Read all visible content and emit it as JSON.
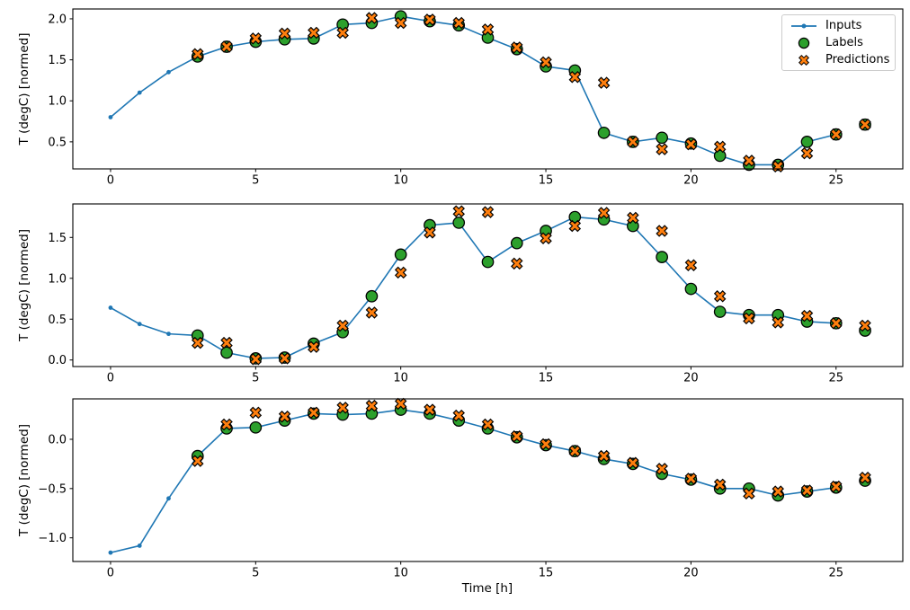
{
  "figure": {
    "background": "#ffffff"
  },
  "colors": {
    "inputs": "#1f77b4",
    "labels": "#2ca02c",
    "predictions": "#ff7f0e",
    "marker_edge": "#000000",
    "axis": "#000000",
    "text": "#000000",
    "legend_border": "#cccccc"
  },
  "chart_data": [
    {
      "type": "line+scatter",
      "ylabel": "T (degC) [normed]",
      "xlim": [
        -1.3,
        27.3
      ],
      "ylim": [
        0.17,
        2.12
      ],
      "xticks": [
        0,
        5,
        10,
        15,
        20,
        25
      ],
      "xtick_labels": [
        "0",
        "5",
        "10",
        "15",
        "20",
        "25"
      ],
      "yticks": [
        0.5,
        1.0,
        1.5,
        2.0
      ],
      "ytick_labels": [
        "0.5",
        "1.0",
        "1.5",
        "2.0"
      ],
      "grid": false,
      "legend": {
        "position": "upper right",
        "entries": [
          "Inputs",
          "Labels",
          "Predictions"
        ]
      },
      "series": {
        "inputs": {
          "x": [
            0,
            1,
            2,
            3,
            4,
            5,
            6,
            7,
            8,
            9,
            10,
            11,
            12,
            13,
            14,
            15,
            16,
            17,
            18,
            19,
            20,
            21,
            22,
            23,
            24,
            25
          ],
          "y": [
            0.8,
            1.1,
            1.35,
            1.54,
            1.66,
            1.72,
            1.75,
            1.76,
            1.93,
            1.95,
            2.03,
            1.97,
            1.92,
            1.77,
            1.63,
            1.42,
            1.37,
            0.61,
            0.5,
            0.55,
            0.48,
            0.33,
            0.22,
            0.22,
            0.5,
            0.59
          ]
        },
        "labels": {
          "x": [
            3,
            4,
            5,
            6,
            7,
            8,
            9,
            10,
            11,
            12,
            13,
            14,
            15,
            16,
            17,
            18,
            19,
            20,
            21,
            22,
            23,
            24,
            25,
            26
          ],
          "y": [
            1.54,
            1.66,
            1.72,
            1.75,
            1.76,
            1.93,
            1.95,
            2.03,
            1.97,
            1.92,
            1.77,
            1.63,
            1.42,
            1.37,
            0.61,
            0.5,
            0.55,
            0.48,
            0.33,
            0.22,
            0.22,
            0.5,
            0.59,
            0.71
          ]
        },
        "predictions": {
          "x": [
            3,
            4,
            5,
            6,
            7,
            8,
            9,
            10,
            11,
            12,
            13,
            14,
            15,
            16,
            17,
            18,
            19,
            20,
            21,
            22,
            23,
            24,
            25,
            26
          ],
          "y": [
            1.57,
            1.66,
            1.76,
            1.82,
            1.83,
            1.83,
            2.01,
            1.95,
            1.99,
            1.95,
            1.87,
            1.65,
            1.47,
            1.29,
            1.22,
            0.5,
            0.41,
            0.47,
            0.44,
            0.27,
            0.2,
            0.36,
            0.59,
            0.71
          ]
        }
      }
    },
    {
      "type": "line+scatter",
      "ylabel": "T (degC) [normed]",
      "xlim": [
        -1.3,
        27.3
      ],
      "ylim": [
        -0.08,
        1.91
      ],
      "xticks": [
        0,
        5,
        10,
        15,
        20,
        25
      ],
      "xtick_labels": [
        "0",
        "5",
        "10",
        "15",
        "20",
        "25"
      ],
      "yticks": [
        0.0,
        0.5,
        1.0,
        1.5
      ],
      "ytick_labels": [
        "0.0",
        "0.5",
        "1.0",
        "1.5"
      ],
      "grid": false,
      "series": {
        "inputs": {
          "x": [
            0,
            1,
            2,
            3,
            4,
            5,
            6,
            7,
            8,
            9,
            10,
            11,
            12,
            13,
            14,
            15,
            16,
            17,
            18,
            19,
            20,
            21,
            22,
            23,
            24,
            25
          ],
          "y": [
            0.64,
            0.44,
            0.32,
            0.3,
            0.09,
            0.02,
            0.03,
            0.2,
            0.34,
            0.78,
            1.29,
            1.65,
            1.68,
            1.2,
            1.43,
            1.58,
            1.75,
            1.72,
            1.64,
            1.26,
            0.87,
            0.59,
            0.55,
            0.55,
            0.47,
            0.45
          ]
        },
        "labels": {
          "x": [
            3,
            4,
            5,
            6,
            7,
            8,
            9,
            10,
            11,
            12,
            13,
            14,
            15,
            16,
            17,
            18,
            19,
            20,
            21,
            22,
            23,
            24,
            25,
            26
          ],
          "y": [
            0.3,
            0.09,
            0.02,
            0.03,
            0.2,
            0.34,
            0.78,
            1.29,
            1.65,
            1.68,
            1.2,
            1.43,
            1.58,
            1.75,
            1.72,
            1.64,
            1.26,
            0.87,
            0.59,
            0.55,
            0.55,
            0.47,
            0.45,
            0.36
          ]
        },
        "predictions": {
          "x": [
            3,
            4,
            5,
            6,
            7,
            8,
            9,
            10,
            11,
            12,
            13,
            14,
            15,
            16,
            17,
            18,
            19,
            20,
            21,
            22,
            23,
            24,
            25,
            26
          ],
          "y": [
            0.21,
            0.21,
            0.01,
            0.02,
            0.16,
            0.42,
            0.58,
            1.07,
            1.56,
            1.82,
            1.81,
            1.18,
            1.49,
            1.64,
            1.8,
            1.74,
            1.58,
            1.16,
            0.78,
            0.51,
            0.46,
            0.54,
            0.45,
            0.42
          ]
        }
      }
    },
    {
      "type": "line+scatter",
      "ylabel": "T (degC) [normed]",
      "xlabel": "Time [h]",
      "xlim": [
        -1.3,
        27.3
      ],
      "ylim": [
        -1.24,
        0.41
      ],
      "xticks": [
        0,
        5,
        10,
        15,
        20,
        25
      ],
      "xtick_labels": [
        "0",
        "5",
        "10",
        "15",
        "20",
        "25"
      ],
      "yticks": [
        -1.0,
        -0.5,
        0.0
      ],
      "ytick_labels": [
        "−1.0",
        "−0.5",
        "0.0"
      ],
      "grid": false,
      "series": {
        "inputs": {
          "x": [
            0,
            1,
            2,
            3,
            4,
            5,
            6,
            7,
            8,
            9,
            10,
            11,
            12,
            13,
            14,
            15,
            16,
            17,
            18,
            19,
            20,
            21,
            22,
            23,
            24,
            25
          ],
          "y": [
            -1.15,
            -1.08,
            -0.6,
            -0.17,
            0.11,
            0.12,
            0.19,
            0.26,
            0.25,
            0.26,
            0.3,
            0.26,
            0.19,
            0.11,
            0.02,
            -0.06,
            -0.12,
            -0.2,
            -0.25,
            -0.35,
            -0.41,
            -0.5,
            -0.5,
            -0.57,
            -0.53,
            -0.49
          ]
        },
        "labels": {
          "x": [
            3,
            4,
            5,
            6,
            7,
            8,
            9,
            10,
            11,
            12,
            13,
            14,
            15,
            16,
            17,
            18,
            19,
            20,
            21,
            22,
            23,
            24,
            25,
            26
          ],
          "y": [
            -0.17,
            0.11,
            0.12,
            0.19,
            0.26,
            0.25,
            0.26,
            0.3,
            0.26,
            0.19,
            0.11,
            0.02,
            -0.06,
            -0.12,
            -0.2,
            -0.25,
            -0.35,
            -0.41,
            -0.5,
            -0.5,
            -0.57,
            -0.53,
            -0.49,
            -0.42
          ]
        },
        "predictions": {
          "x": [
            3,
            4,
            5,
            6,
            7,
            8,
            9,
            10,
            11,
            12,
            13,
            14,
            15,
            16,
            17,
            18,
            19,
            20,
            21,
            22,
            23,
            24,
            25,
            26
          ],
          "y": [
            -0.22,
            0.15,
            0.27,
            0.23,
            0.27,
            0.32,
            0.34,
            0.36,
            0.3,
            0.24,
            0.15,
            0.03,
            -0.05,
            -0.12,
            -0.17,
            -0.24,
            -0.3,
            -0.4,
            -0.46,
            -0.55,
            -0.53,
            -0.52,
            -0.48,
            -0.39
          ]
        }
      }
    }
  ]
}
